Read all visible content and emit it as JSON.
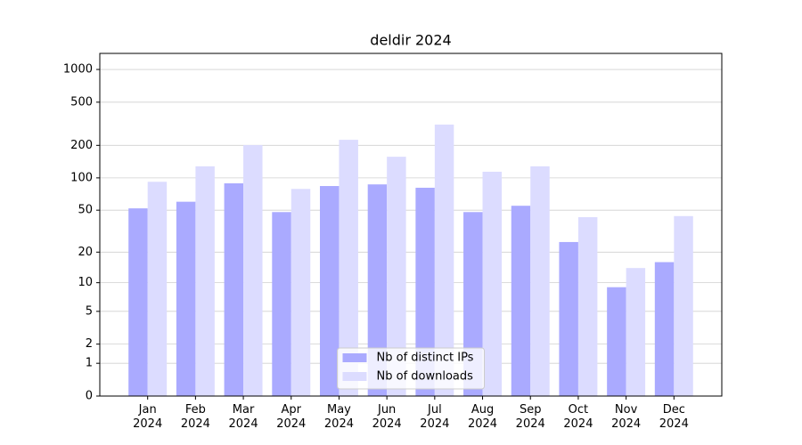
{
  "chart_data": {
    "type": "bar",
    "title": "deldir 2024",
    "categories": [
      "Jan\n2024",
      "Feb\n2024",
      "Mar\n2024",
      "Apr\n2024",
      "May\n2024",
      "Jun\n2024",
      "Jul\n2024",
      "Aug\n2024",
      "Sep\n2024",
      "Oct\n2024",
      "Nov\n2024",
      "Dec\n2024"
    ],
    "series": [
      {
        "name": "Nb of distinct IPs",
        "color": "#aaaaff",
        "values": [
          52,
          60,
          89,
          48,
          84,
          87,
          81,
          48,
          55,
          25,
          9,
          16
        ]
      },
      {
        "name": "Nb of downloads",
        "color": "#dcdcff",
        "values": [
          92,
          128,
          201,
          79,
          225,
          157,
          311,
          114,
          128,
          43,
          14,
          44
        ]
      }
    ],
    "yscale": "log1p",
    "ylim": [
      0,
      1405
    ],
    "yticks": [
      0,
      1,
      2,
      5,
      10,
      20,
      50,
      100,
      200,
      500,
      1000
    ],
    "grid": true,
    "legend": "lower center"
  }
}
